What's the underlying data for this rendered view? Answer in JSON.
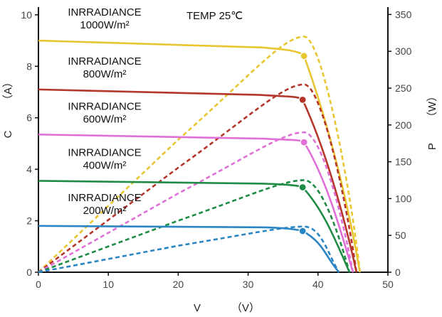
{
  "chart_data": {
    "type": "line",
    "temp_label": "TEMP  25℃",
    "xlabel": {
      "symbol": "V",
      "unit": "（V）"
    },
    "ylabel_left": {
      "symbol": "C",
      "unit": "（A）"
    },
    "ylabel_right": {
      "symbol": "P",
      "unit": "（W）"
    },
    "xlim": [
      0,
      50
    ],
    "ylim_left": [
      0,
      10.3
    ],
    "ylim_right": [
      0,
      360
    ],
    "xticks": [
      0,
      10,
      20,
      30,
      40,
      50
    ],
    "yticks_left": [
      0,
      2,
      4,
      6,
      8,
      10
    ],
    "yticks_right": [
      0,
      50,
      100,
      150,
      200,
      250,
      300,
      350
    ],
    "series": [
      {
        "label_line1": "INRRADIANCE",
        "label_line2": "1000W/m²",
        "color": "#e8c631",
        "current": {
          "isc": 9.0,
          "voc": 46.0,
          "mpp_v": 38.0,
          "mpp_i": 8.4
        },
        "power": [
          [
            0,
            0
          ],
          [
            20,
            180
          ],
          [
            38,
            320
          ],
          [
            42,
            250
          ],
          [
            46,
            0
          ]
        ]
      },
      {
        "label_line1": "INRRADIANCE",
        "label_line2": "800W/m²",
        "color": "#b5362b",
        "current": {
          "isc": 7.1,
          "voc": 45.5,
          "mpp_v": 37.8,
          "mpp_i": 6.7
        },
        "power": [
          [
            0,
            0
          ],
          [
            20,
            142
          ],
          [
            38,
            255
          ],
          [
            42,
            200
          ],
          [
            45.5,
            0
          ]
        ]
      },
      {
        "label_line1": "INRRADIANCE",
        "label_line2": "600W/m²",
        "color": "#e070d8",
        "current": {
          "isc": 5.35,
          "voc": 45.0,
          "mpp_v": 38.0,
          "mpp_i": 5.05
        },
        "power": [
          [
            0,
            0
          ],
          [
            20,
            107
          ],
          [
            38,
            190
          ],
          [
            42,
            150
          ],
          [
            45,
            0
          ]
        ]
      },
      {
        "label_line1": "INRRADIANCE",
        "label_line2": "400W/m²",
        "color": "#1e8c45",
        "current": {
          "isc": 3.55,
          "voc": 44.5,
          "mpp_v": 37.8,
          "mpp_i": 3.3
        },
        "power": [
          [
            0,
            0
          ],
          [
            20,
            70
          ],
          [
            38,
            125
          ],
          [
            42,
            100
          ],
          [
            44.5,
            0
          ]
        ]
      },
      {
        "label_line1": "INRRADIANCE",
        "label_line2": "200W/m²",
        "color": "#2a85c4",
        "current": {
          "isc": 1.8,
          "voc": 43.0,
          "mpp_v": 37.8,
          "mpp_i": 1.6
        },
        "power": [
          [
            0,
            0
          ],
          [
            20,
            36
          ],
          [
            38,
            62
          ],
          [
            41,
            45
          ],
          [
            43,
            0
          ]
        ]
      }
    ]
  }
}
